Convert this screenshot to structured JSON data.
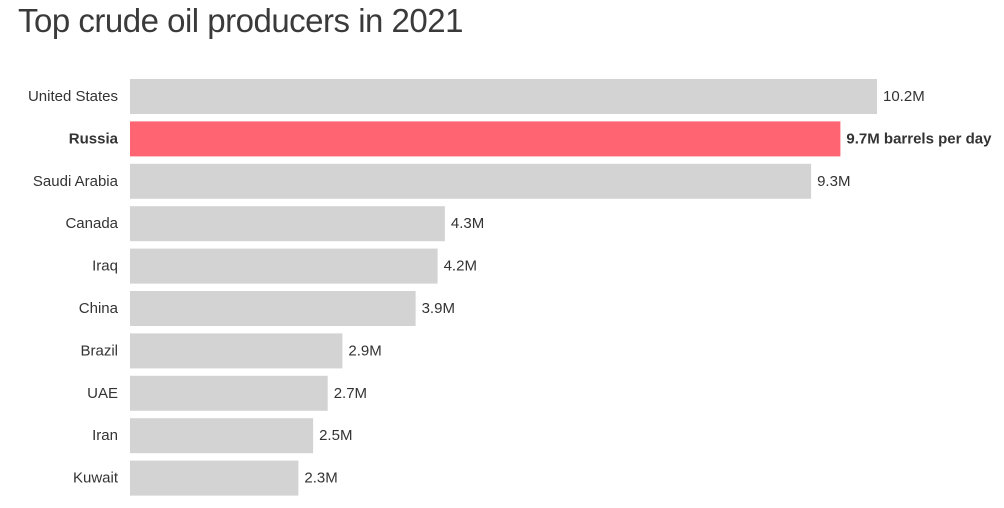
{
  "chart_data": {
    "type": "bar",
    "orientation": "horizontal",
    "title": "Top crude oil producers in 2021",
    "categories": [
      "United States",
      "Russia",
      "Saudi Arabia",
      "Canada",
      "Iraq",
      "China",
      "Brazil",
      "UAE",
      "Iran",
      "Kuwait"
    ],
    "values": [
      10.2,
      9.7,
      9.3,
      4.3,
      4.2,
      3.9,
      2.9,
      2.7,
      2.5,
      2.3
    ],
    "value_labels": [
      "10.2M",
      "9.7M barrels per day",
      "9.3M",
      "4.3M",
      "4.2M",
      "3.9M",
      "2.9M",
      "2.7M",
      "2.5M",
      "2.3M"
    ],
    "unit": "million barrels per day",
    "highlight_category": "Russia",
    "xlim": [
      0,
      10.2
    ],
    "grid": false,
    "legend": "none",
    "xlabel": "",
    "ylabel": ""
  },
  "colors": {
    "bar_default": "#d3d3d3",
    "bar_highlight": "#ff6473",
    "text": "#333333"
  }
}
